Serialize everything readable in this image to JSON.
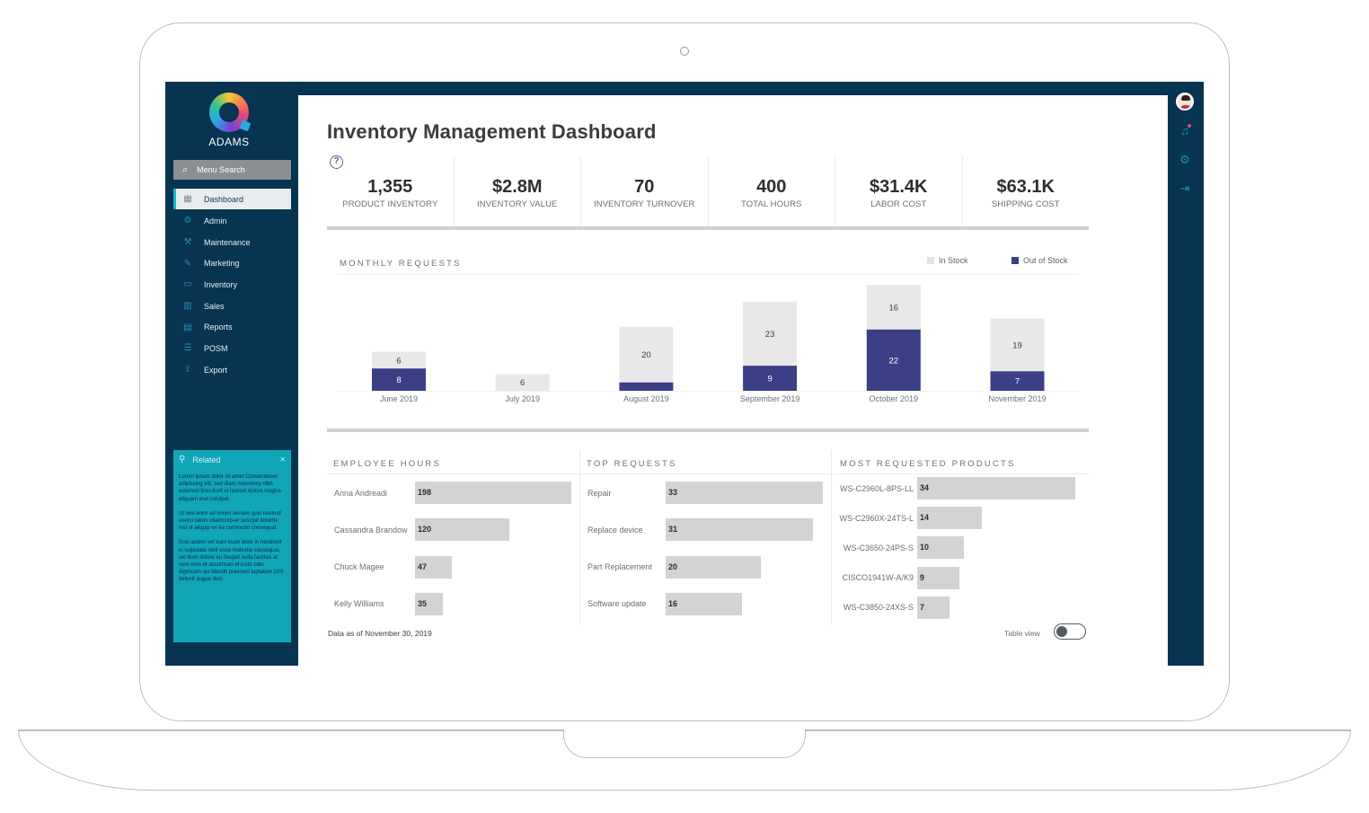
{
  "app": {
    "brand": "ADAMS"
  },
  "sidebar": {
    "search_label": "Menu Search",
    "items": [
      {
        "label": "Dashboard",
        "icon": "dashboard-icon",
        "active": true
      },
      {
        "label": "Admin",
        "icon": "gear-icon"
      },
      {
        "label": "Maintenance",
        "icon": "wrench-icon"
      },
      {
        "label": "Marketing",
        "icon": "megaphone-icon"
      },
      {
        "label": "Inventory",
        "icon": "box-icon"
      },
      {
        "label": "Sales",
        "icon": "bar-chart-icon"
      },
      {
        "label": "Reports",
        "icon": "document-icon"
      },
      {
        "label": "POSM",
        "icon": "signpost-icon"
      },
      {
        "label": "Export",
        "icon": "export-icon"
      }
    ],
    "related": {
      "title": "Related",
      "paragraphs": [
        "Lorem ipsum dolor sit amet Consectetuer adipiscing elit, sed diam nonummy nibh euismod tinci-dunt ut laoreet dolore magna aliquam erat volutpat.",
        "Ut wisi enim ad minim veniam quis nostrud exerci tation ullamcorp-er suscipit lobortis nisl ut aliquip ex ea commodo consequat.",
        "Duis autem vel eum iriure dolor in hendrerit in vulputate Velit esse molestie consequat, vel illum dolore eu feugiat nulla facilisis at vero eros et accumsan et iusto odio dignissim qui blandit praesent luptatum zzril delenit augue duis"
      ]
    }
  },
  "header": {
    "title": "Inventory Management Dashboard"
  },
  "kpis": [
    {
      "value": "1,355",
      "label": "PRODUCT INVENTORY"
    },
    {
      "value": "$2.8M",
      "label": "INVENTORY VALUE"
    },
    {
      "value": "70",
      "label": "INVENTORY TURNOVER"
    },
    {
      "value": "400",
      "label": "TOTAL HOURS"
    },
    {
      "value": "$31.4K",
      "label": "LABOR COST"
    },
    {
      "value": "$63.1K",
      "label": "SHIPPING COST"
    }
  ],
  "colors": {
    "in_stock": "#e8e8e8",
    "out_of_stock": "#3b3f86",
    "bar_gray": "#d3d3d3",
    "nav_bg": "#063451"
  },
  "chart_data": [
    {
      "type": "bar",
      "stacked": true,
      "title": "MONTHLY REQUESTS",
      "legend_position": "top-right",
      "categories": [
        "June 2019",
        "July 2019",
        "August 2019",
        "September 2019",
        "October 2019",
        "November 2019"
      ],
      "series": [
        {
          "name": "Out of Stock",
          "values": [
            8,
            0,
            3,
            9,
            22,
            7
          ],
          "labels": [
            "8",
            "",
            "",
            "9",
            "22",
            "7"
          ]
        },
        {
          "name": "In Stock",
          "values": [
            6,
            6,
            20,
            23,
            16,
            19
          ],
          "labels": [
            "6",
            "6",
            "20",
            "23",
            "16",
            "19"
          ]
        }
      ]
    },
    {
      "type": "bar",
      "orientation": "horizontal",
      "title": "EMPLOYEE HOURS",
      "categories": [
        "Anna Andreadi",
        "Cassandra Brandow",
        "Chuck Magee",
        "Kelly Williams"
      ],
      "values": [
        198,
        120,
        47,
        35
      ]
    },
    {
      "type": "bar",
      "orientation": "horizontal",
      "title": "TOP REQUESTS",
      "categories": [
        "Repair",
        "Replace device",
        "Part Replacement",
        "Software update"
      ],
      "values": [
        33,
        31,
        20,
        16
      ]
    },
    {
      "type": "bar",
      "orientation": "horizontal",
      "title": "MOST REQUESTED PRODUCTS",
      "categories": [
        "WS-C2960L-8PS-LL",
        "WS-C2960X-24TS-L",
        "WS-C3650-24PS-S",
        "CISCO1941W-A/K9",
        "WS-C3850-24XS-S"
      ],
      "values": [
        34,
        14,
        10,
        9,
        7
      ]
    }
  ],
  "footer": {
    "data_as_of": "Data as of November 30, 2019",
    "toggle_label": "Table view"
  }
}
